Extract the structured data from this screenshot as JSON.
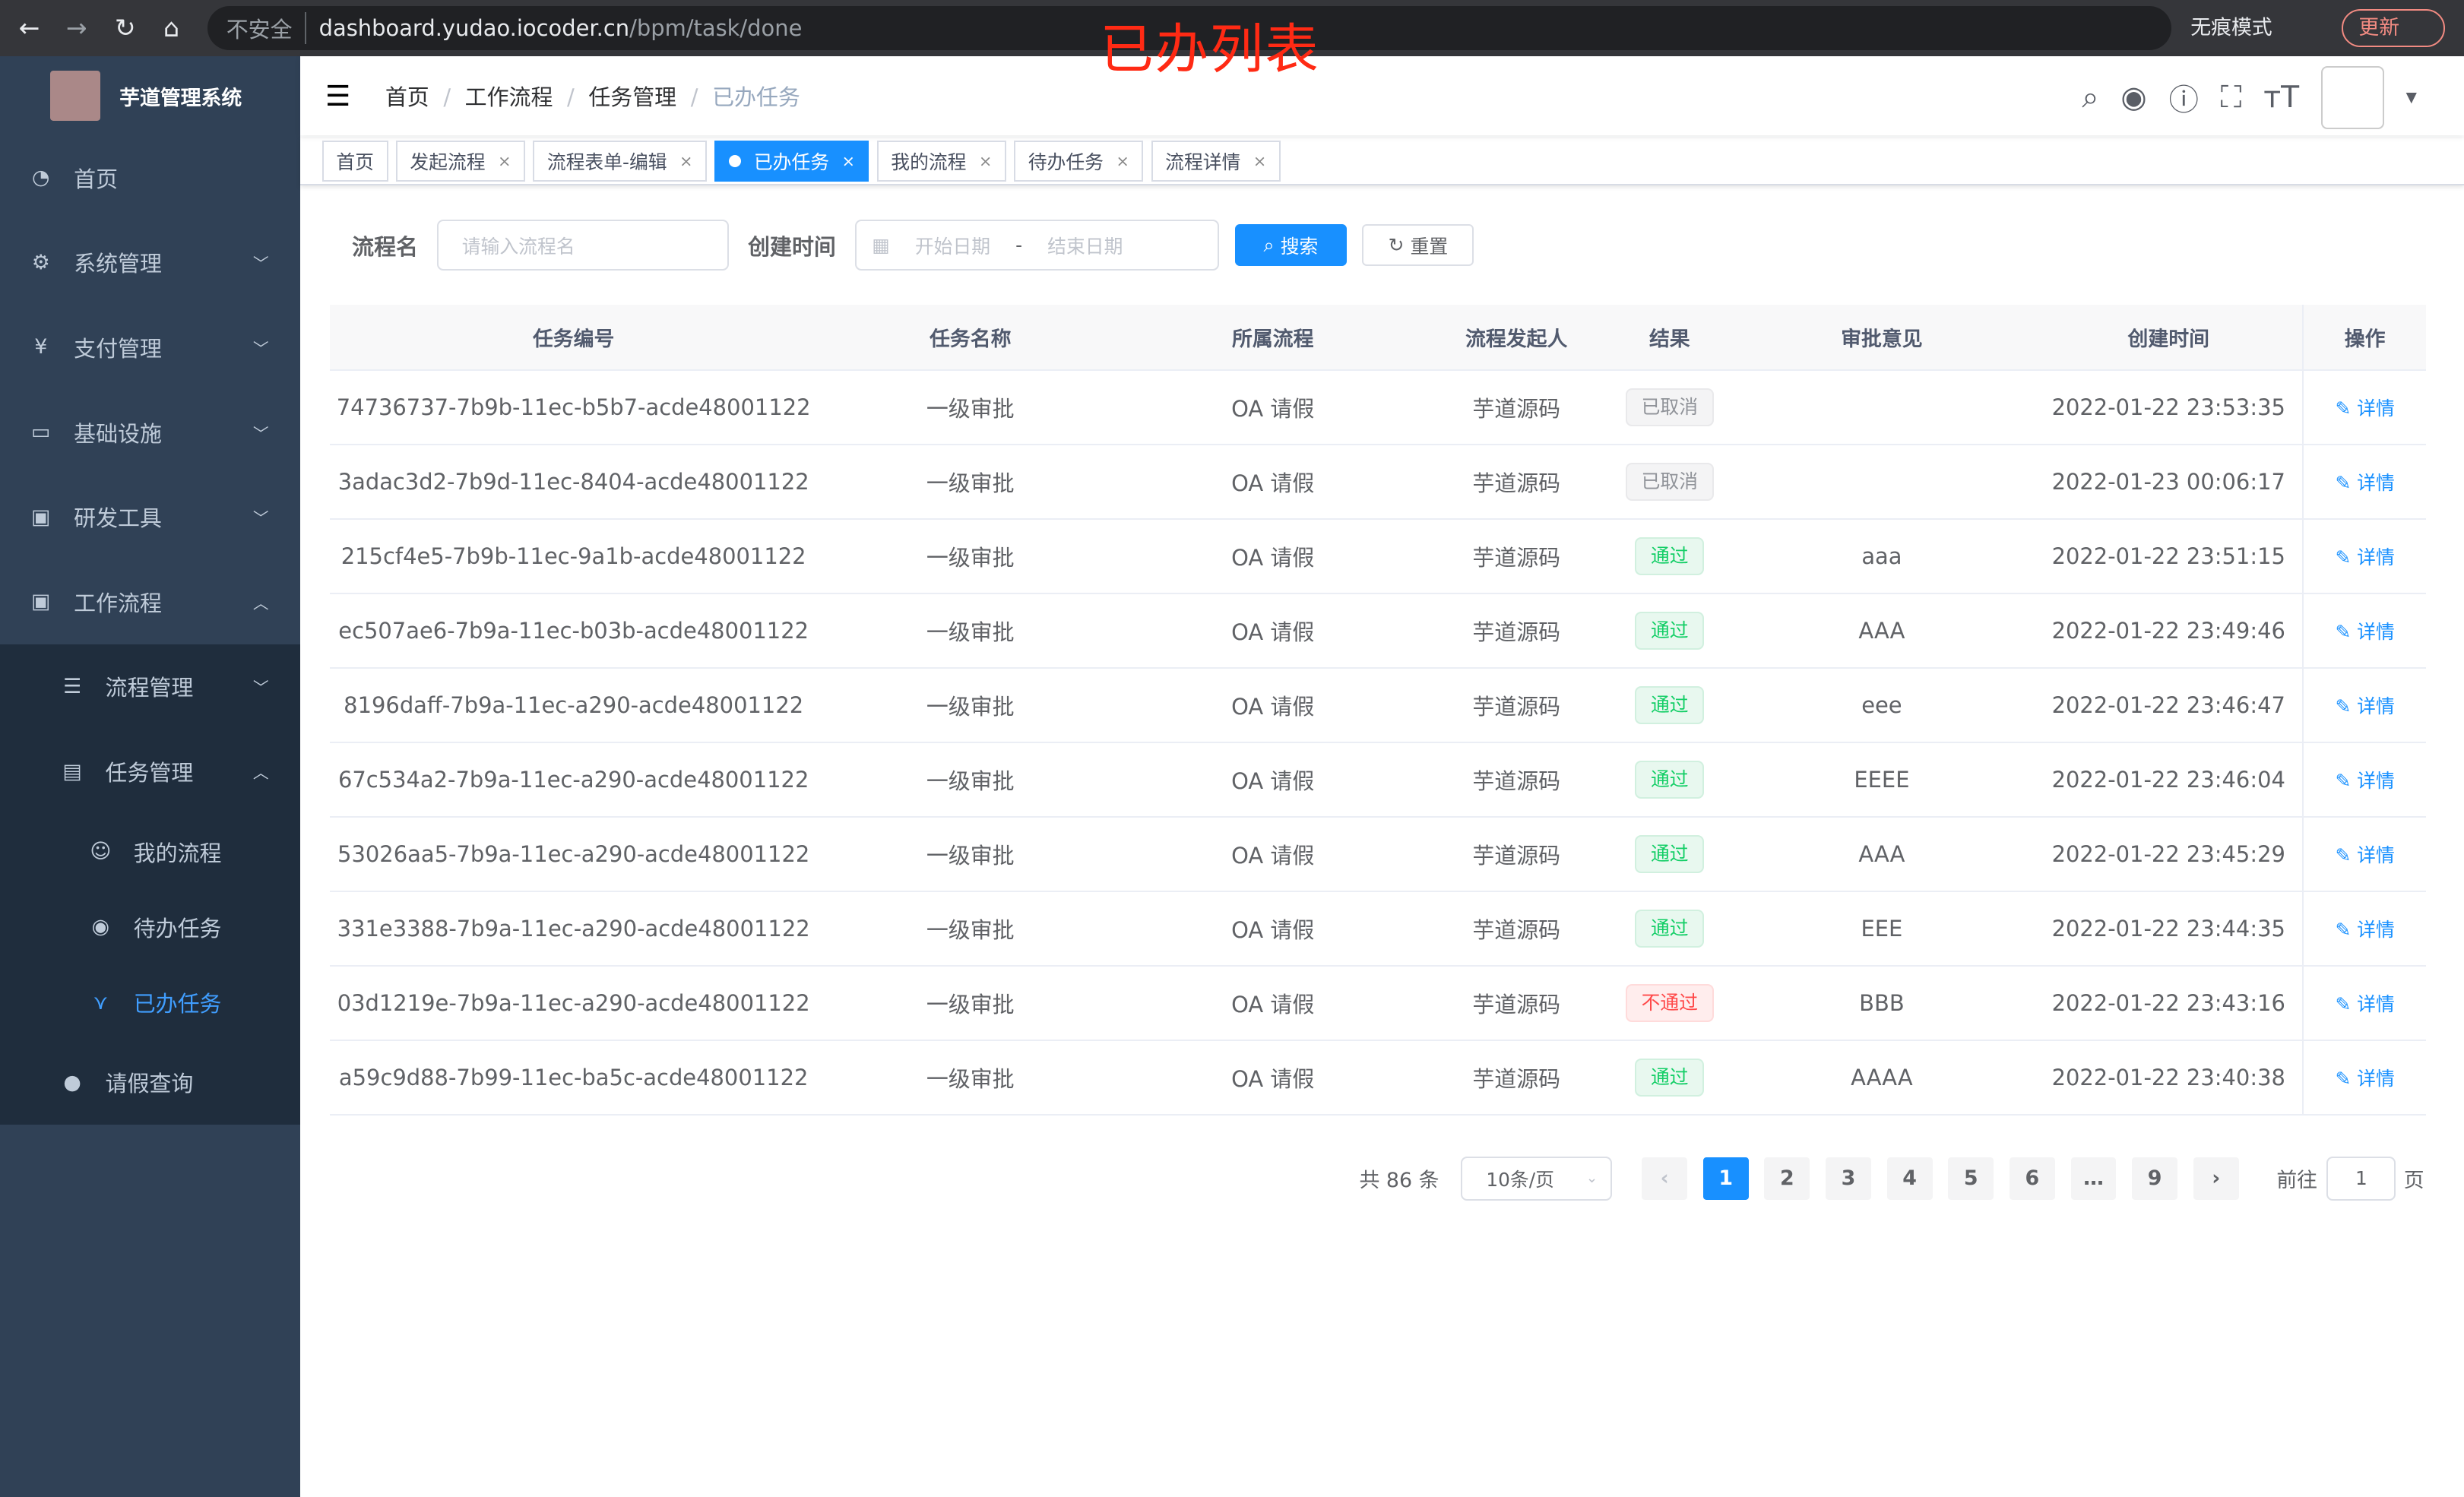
{
  "browser": {
    "insecure": "不安全",
    "host": "dashboard.yudao.iocoder.cn",
    "path": "/bpm/task/done",
    "incognito": "无痕模式",
    "update": "更新"
  },
  "annotation": "已办列表",
  "sidebar": {
    "title": "芋道管理系统",
    "items": [
      {
        "label": "首页",
        "icon": "dashboard-icon"
      },
      {
        "label": "系统管理",
        "icon": "gear-icon"
      },
      {
        "label": "支付管理",
        "icon": "yen-icon"
      },
      {
        "label": "基础设施",
        "icon": "monitor-icon"
      },
      {
        "label": "研发工具",
        "icon": "toolbox-icon"
      },
      {
        "label": "工作流程",
        "icon": "toolbox-icon"
      }
    ],
    "sub": [
      {
        "label": "流程管理"
      },
      {
        "label": "任务管理"
      }
    ],
    "subsub": [
      {
        "label": "我的流程"
      },
      {
        "label": "待办任务"
      },
      {
        "label": "已办任务"
      }
    ],
    "leave": "请假查询"
  },
  "breadcrumb": [
    "首页",
    "工作流程",
    "任务管理",
    "已办任务"
  ],
  "tags": [
    "首页",
    "发起流程",
    "流程表单-编辑",
    "已办任务",
    "我的流程",
    "待办任务",
    "流程详情"
  ],
  "form": {
    "name_label": "流程名",
    "name_placeholder": "请输入流程名",
    "time_label": "创建时间",
    "start_placeholder": "开始日期",
    "sep": "-",
    "end_placeholder": "结束日期",
    "search": "搜索",
    "reset": "重置"
  },
  "table": {
    "headers": [
      "任务编号",
      "任务名称",
      "所属流程",
      "流程发起人",
      "结果",
      "审批意见",
      "创建时间",
      "操作"
    ],
    "rows": [
      {
        "id": "74736737-7b9b-11ec-b5b7-acde48001122",
        "name": "一级审批",
        "process": "OA 请假",
        "starter": "芋道源码",
        "result": "已取消",
        "status": "cancel",
        "comment": "",
        "time": "2022-01-22 23:53:35",
        "action": "详情"
      },
      {
        "id": "3adac3d2-7b9d-11ec-8404-acde48001122",
        "name": "一级审批",
        "process": "OA 请假",
        "starter": "芋道源码",
        "result": "已取消",
        "status": "cancel",
        "comment": "",
        "time": "2022-01-23 00:06:17",
        "action": "详情"
      },
      {
        "id": "215cf4e5-7b9b-11ec-9a1b-acde48001122",
        "name": "一级审批",
        "process": "OA 请假",
        "starter": "芋道源码",
        "result": "通过",
        "status": "pass",
        "comment": "aaa",
        "time": "2022-01-22 23:51:15",
        "action": "详情"
      },
      {
        "id": "ec507ae6-7b9a-11ec-b03b-acde48001122",
        "name": "一级审批",
        "process": "OA 请假",
        "starter": "芋道源码",
        "result": "通过",
        "status": "pass",
        "comment": "AAA",
        "time": "2022-01-22 23:49:46",
        "action": "详情"
      },
      {
        "id": "8196daff-7b9a-11ec-a290-acde48001122",
        "name": "一级审批",
        "process": "OA 请假",
        "starter": "芋道源码",
        "result": "通过",
        "status": "pass",
        "comment": "eee",
        "time": "2022-01-22 23:46:47",
        "action": "详情"
      },
      {
        "id": "67c534a2-7b9a-11ec-a290-acde48001122",
        "name": "一级审批",
        "process": "OA 请假",
        "starter": "芋道源码",
        "result": "通过",
        "status": "pass",
        "comment": "EEEE",
        "time": "2022-01-22 23:46:04",
        "action": "详情"
      },
      {
        "id": "53026aa5-7b9a-11ec-a290-acde48001122",
        "name": "一级审批",
        "process": "OA 请假",
        "starter": "芋道源码",
        "result": "通过",
        "status": "pass",
        "comment": "AAA",
        "time": "2022-01-22 23:45:29",
        "action": "详情"
      },
      {
        "id": "331e3388-7b9a-11ec-a290-acde48001122",
        "name": "一级审批",
        "process": "OA 请假",
        "starter": "芋道源码",
        "result": "通过",
        "status": "pass",
        "comment": "EEE",
        "time": "2022-01-22 23:44:35",
        "action": "详情"
      },
      {
        "id": "03d1219e-7b9a-11ec-a290-acde48001122",
        "name": "一级审批",
        "process": "OA 请假",
        "starter": "芋道源码",
        "result": "不通过",
        "status": "reject",
        "comment": "BBB",
        "time": "2022-01-22 23:43:16",
        "action": "详情"
      },
      {
        "id": "a59c9d88-7b99-11ec-ba5c-acde48001122",
        "name": "一级审批",
        "process": "OA 请假",
        "starter": "芋道源码",
        "result": "通过",
        "status": "pass",
        "comment": "AAAA",
        "time": "2022-01-22 23:40:38",
        "action": "详情"
      }
    ]
  },
  "pagination": {
    "total": "共 86 条",
    "page_size": "10条/页",
    "pages": [
      "1",
      "2",
      "3",
      "4",
      "5",
      "6",
      "…",
      "9"
    ],
    "current": "1",
    "goto_label": "前往",
    "goto_value": "1",
    "page_unit": "页"
  },
  "colors": {
    "primary": "#1890ff",
    "sidebar": "#304156",
    "annotation": "#ff2a14"
  }
}
